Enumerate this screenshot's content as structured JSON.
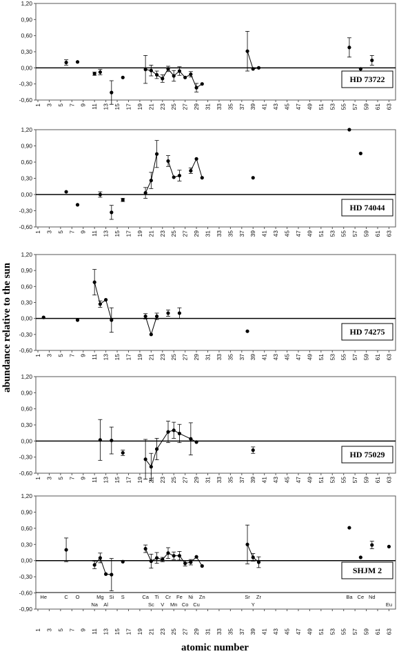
{
  "figure": {
    "ylabel": "abundance  relative  to  the  sun",
    "xlabel": "atomic number"
  },
  "chart_data": [
    {
      "type": "scatter",
      "label": "HD 73722",
      "ylim": [
        -0.6,
        1.2
      ],
      "yticks": [
        "-0,60",
        "-0,30",
        "0,00",
        "0,30",
        "0,60",
        "0,90",
        "1,20"
      ],
      "xticks": [
        1,
        3,
        5,
        7,
        9,
        11,
        13,
        15,
        17,
        19,
        21,
        23,
        25,
        27,
        29,
        31,
        33,
        35,
        37,
        39,
        41,
        43,
        45,
        47,
        49,
        51,
        53,
        55,
        57,
        59,
        61,
        63
      ],
      "points": [
        {
          "z": 6,
          "y": 0.1,
          "err": 0.05
        },
        {
          "z": 8,
          "y": 0.11,
          "err": 0
        },
        {
          "z": 11,
          "y": -0.11,
          "err": 0.03
        },
        {
          "z": 12,
          "y": -0.08,
          "err": 0.05
        },
        {
          "z": 14,
          "y": -0.46,
          "err": 0.22
        },
        {
          "z": 16,
          "y": -0.18,
          "err": 0
        },
        {
          "z": 20,
          "y": -0.03,
          "err": 0.26
        },
        {
          "z": 21,
          "y": -0.05,
          "err": 0.1
        },
        {
          "z": 22,
          "y": -0.13,
          "err": 0.07
        },
        {
          "z": 23,
          "y": -0.2,
          "err": 0.07
        },
        {
          "z": 24,
          "y": -0.02,
          "err": 0.05
        },
        {
          "z": 25,
          "y": -0.15,
          "err": 0.1
        },
        {
          "z": 26,
          "y": -0.06,
          "err": 0.08
        },
        {
          "z": 27,
          "y": -0.18,
          "err": 0
        },
        {
          "z": 28,
          "y": -0.12,
          "err": 0.05
        },
        {
          "z": 29,
          "y": -0.37,
          "err": 0.08
        },
        {
          "z": 30,
          "y": -0.3,
          "err": 0
        },
        {
          "z": 38,
          "y": 0.31,
          "err": 0.37
        },
        {
          "z": 39,
          "y": -0.02,
          "err": 0
        },
        {
          "z": 40,
          "y": 0.0,
          "err": 0
        },
        {
          "z": 56,
          "y": 0.38,
          "err": 0.18
        },
        {
          "z": 58,
          "y": -0.02,
          "err": 0
        },
        {
          "z": 60,
          "y": 0.14,
          "err": 0.09
        }
      ],
      "lines": [
        [
          20,
          21,
          22,
          23,
          24,
          25,
          26,
          27,
          28,
          29,
          30
        ],
        [
          38,
          39,
          40
        ]
      ]
    },
    {
      "type": "scatter",
      "label": "HD 74044",
      "ylim": [
        -0.6,
        1.2
      ],
      "yticks": [
        "-0,60",
        "-0,30",
        "0,00",
        "0,30",
        "0,60",
        "0,90",
        "1,20"
      ],
      "xticks": [
        1,
        3,
        5,
        7,
        9,
        11,
        13,
        15,
        17,
        19,
        21,
        23,
        25,
        27,
        29,
        31,
        33,
        35,
        37,
        39,
        41,
        43,
        45,
        47,
        49,
        51,
        53,
        55,
        57,
        59,
        61,
        63
      ],
      "points": [
        {
          "z": 6,
          "y": 0.05,
          "err": 0
        },
        {
          "z": 8,
          "y": -0.19,
          "err": 0
        },
        {
          "z": 12,
          "y": 0.0,
          "err": 0.05
        },
        {
          "z": 14,
          "y": -0.33,
          "err": 0.13
        },
        {
          "z": 16,
          "y": -0.1,
          "err": 0.03
        },
        {
          "z": 20,
          "y": 0.03,
          "err": 0.1
        },
        {
          "z": 21,
          "y": 0.26,
          "err": 0.15
        },
        {
          "z": 22,
          "y": 0.75,
          "err": 0.25
        },
        {
          "z": 24,
          "y": 0.62,
          "err": 0.1
        },
        {
          "z": 25,
          "y": 0.32,
          "err": 0
        },
        {
          "z": 26,
          "y": 0.35,
          "err": 0.1
        },
        {
          "z": 28,
          "y": 0.44,
          "err": 0.05
        },
        {
          "z": 29,
          "y": 0.66,
          "err": 0
        },
        {
          "z": 30,
          "y": 0.31,
          "err": 0
        },
        {
          "z": 39,
          "y": 0.31,
          "err": 0
        },
        {
          "z": 56,
          "y": 1.2,
          "err": 0
        },
        {
          "z": 58,
          "y": 0.76,
          "err": 0
        }
      ],
      "lines": [
        [
          20,
          21,
          22
        ],
        [
          24,
          25,
          26
        ],
        [
          28,
          29,
          30
        ]
      ]
    },
    {
      "type": "scatter",
      "label": "HD 74275",
      "ylim": [
        -0.6,
        1.2
      ],
      "yticks": [
        "-0,60",
        "-0,30",
        "0,00",
        "0,30",
        "0,60",
        "0,90",
        "1,20"
      ],
      "xticks": [
        1,
        3,
        5,
        7,
        9,
        11,
        13,
        15,
        17,
        19,
        21,
        23,
        25,
        27,
        29,
        31,
        33,
        35,
        37,
        39,
        41,
        43,
        45,
        47,
        49,
        51,
        53,
        55,
        57,
        59,
        61,
        63
      ],
      "points": [
        {
          "z": 2,
          "y": 0.02,
          "err": 0
        },
        {
          "z": 8,
          "y": -0.03,
          "err": 0
        },
        {
          "z": 11,
          "y": 0.68,
          "err": 0.24
        },
        {
          "z": 12,
          "y": 0.27,
          "err": 0.06
        },
        {
          "z": 13,
          "y": 0.35,
          "err": 0
        },
        {
          "z": 14,
          "y": -0.03,
          "err": 0.23
        },
        {
          "z": 20,
          "y": 0.04,
          "err": 0.05
        },
        {
          "z": 21,
          "y": -0.3,
          "err": 0
        },
        {
          "z": 22,
          "y": 0.04,
          "err": 0.06
        },
        {
          "z": 24,
          "y": 0.1,
          "err": 0.06
        },
        {
          "z": 26,
          "y": 0.1,
          "err": 0.1
        },
        {
          "z": 38,
          "y": -0.24,
          "err": 0
        }
      ],
      "lines": [
        [
          11,
          12,
          13,
          14
        ],
        [
          20,
          21,
          22
        ]
      ]
    },
    {
      "type": "scatter",
      "label": "HD 75029",
      "ylim": [
        -0.6,
        1.2
      ],
      "yticks": [
        "-0,60",
        "-0,30",
        "0,00",
        "0,30",
        "0,60",
        "0,90",
        "1,20"
      ],
      "xticks": [
        1,
        3,
        5,
        7,
        9,
        11,
        13,
        15,
        17,
        19,
        21,
        23,
        25,
        27,
        29,
        31,
        33,
        35,
        37,
        39,
        41,
        43,
        45,
        47,
        49,
        51,
        53,
        55,
        57,
        59,
        61,
        63
      ],
      "points": [
        {
          "z": 12,
          "y": 0.02,
          "err": 0.38
        },
        {
          "z": 14,
          "y": 0.01,
          "err": 0.25
        },
        {
          "z": 16,
          "y": -0.22,
          "err": 0.05
        },
        {
          "z": 20,
          "y": -0.34,
          "err": 0.37
        },
        {
          "z": 21,
          "y": -0.48,
          "err": 0.25
        },
        {
          "z": 22,
          "y": -0.15,
          "err": 0.2
        },
        {
          "z": 24,
          "y": 0.17,
          "err": 0.2
        },
        {
          "z": 25,
          "y": 0.2,
          "err": 0.15
        },
        {
          "z": 26,
          "y": 0.14,
          "err": 0.17
        },
        {
          "z": 28,
          "y": 0.04,
          "err": 0.3
        },
        {
          "z": 29,
          "y": -0.02,
          "err": 0
        },
        {
          "z": 39,
          "y": -0.17,
          "err": 0.06
        }
      ],
      "lines": [
        [
          20,
          21,
          22,
          24,
          25,
          26,
          28,
          29
        ]
      ]
    },
    {
      "type": "scatter",
      "label": "SHJM 2",
      "ylim": [
        -0.9,
        1.2
      ],
      "yticks": [
        "-0,90",
        "-0,60",
        "-0,30",
        "0,00",
        "0,30",
        "0,60",
        "0,90",
        "1,20"
      ],
      "xticks": [
        1,
        3,
        5,
        7,
        9,
        11,
        13,
        15,
        17,
        19,
        21,
        23,
        25,
        27,
        29,
        31,
        33,
        35,
        37,
        39,
        41,
        43,
        45,
        47,
        49,
        51,
        53,
        55,
        57,
        59,
        61,
        63
      ],
      "points": [
        {
          "z": 6,
          "y": 0.2,
          "err": 0.22
        },
        {
          "z": 11,
          "y": -0.08,
          "err": 0.07
        },
        {
          "z": 12,
          "y": 0.05,
          "err": 0.09
        },
        {
          "z": 13,
          "y": -0.25,
          "err": 0
        },
        {
          "z": 14,
          "y": -0.26,
          "err": 0.3
        },
        {
          "z": 16,
          "y": -0.02,
          "err": 0
        },
        {
          "z": 20,
          "y": 0.22,
          "err": 0.07
        },
        {
          "z": 21,
          "y": -0.01,
          "err": 0.13
        },
        {
          "z": 22,
          "y": 0.05,
          "err": 0.1
        },
        {
          "z": 23,
          "y": 0.02,
          "err": 0.04
        },
        {
          "z": 24,
          "y": 0.14,
          "err": 0.1
        },
        {
          "z": 25,
          "y": 0.09,
          "err": 0.07
        },
        {
          "z": 26,
          "y": 0.09,
          "err": 0.08
        },
        {
          "z": 27,
          "y": -0.05,
          "err": 0.05
        },
        {
          "z": 28,
          "y": -0.03,
          "err": 0.05
        },
        {
          "z": 29,
          "y": 0.07,
          "err": 0
        },
        {
          "z": 30,
          "y": -0.1,
          "err": 0
        },
        {
          "z": 38,
          "y": 0.3,
          "err": 0.36
        },
        {
          "z": 39,
          "y": 0.06,
          "err": 0.07
        },
        {
          "z": 40,
          "y": -0.03,
          "err": 0.1
        },
        {
          "z": 56,
          "y": 0.61,
          "err": 0
        },
        {
          "z": 58,
          "y": 0.06,
          "err": 0
        },
        {
          "z": 60,
          "y": 0.29,
          "err": 0.07
        },
        {
          "z": 63,
          "y": 0.26,
          "err": 0
        }
      ],
      "lines": [
        [
          11,
          12,
          13,
          14
        ],
        [
          20,
          21,
          22,
          23,
          24,
          25,
          26,
          27,
          28,
          29,
          30
        ],
        [
          38,
          39,
          40
        ]
      ],
      "elements": [
        {
          "z": 2,
          "sym": "He",
          "row": 0
        },
        {
          "z": 6,
          "sym": "C",
          "row": 0
        },
        {
          "z": 8,
          "sym": "O",
          "row": 0
        },
        {
          "z": 11,
          "sym": "Na",
          "row": 1
        },
        {
          "z": 12,
          "sym": "Mg",
          "row": 0
        },
        {
          "z": 13,
          "sym": "Al",
          "row": 1
        },
        {
          "z": 14,
          "sym": "Si",
          "row": 0
        },
        {
          "z": 16,
          "sym": "S",
          "row": 0
        },
        {
          "z": 20,
          "sym": "Ca",
          "row": 0
        },
        {
          "z": 21,
          "sym": "Sc",
          "row": 1
        },
        {
          "z": 22,
          "sym": "Ti",
          "row": 0
        },
        {
          "z": 23,
          "sym": "V",
          "row": 1
        },
        {
          "z": 24,
          "sym": "Cr",
          "row": 0
        },
        {
          "z": 25,
          "sym": "Mn",
          "row": 1
        },
        {
          "z": 26,
          "sym": "Fe",
          "row": 0
        },
        {
          "z": 27,
          "sym": "Co",
          "row": 1
        },
        {
          "z": 28,
          "sym": "Ni",
          "row": 0
        },
        {
          "z": 29,
          "sym": "Cu",
          "row": 1
        },
        {
          "z": 30,
          "sym": "Zn",
          "row": 0
        },
        {
          "z": 38,
          "sym": "Sr",
          "row": 0
        },
        {
          "z": 39,
          "sym": "Y",
          "row": 1
        },
        {
          "z": 40,
          "sym": "Zr",
          "row": 0
        },
        {
          "z": 56,
          "sym": "Ba",
          "row": 0
        },
        {
          "z": 58,
          "sym": "Ce",
          "row": 0
        },
        {
          "z": 60,
          "sym": "Nd",
          "row": 0
        },
        {
          "z": 63,
          "sym": "Eu",
          "row": 1
        }
      ]
    }
  ]
}
